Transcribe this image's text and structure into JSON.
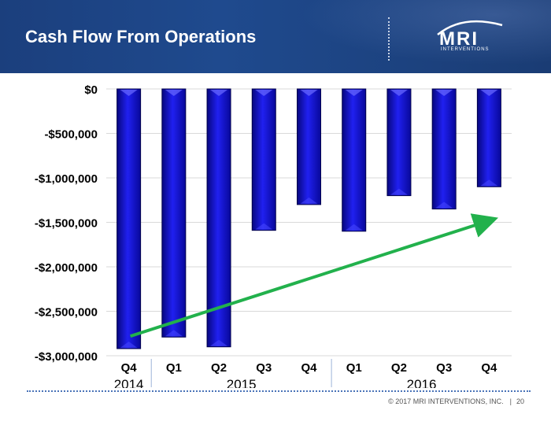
{
  "slide": {
    "title": "Cash Flow From Operations",
    "logo_text": "MRI",
    "logo_sub": "INTERVENTIONS",
    "footer_copyright": "© 2017 MRI INTERVENTIONS, INC.",
    "footer_separator": "|",
    "page_number": "20"
  },
  "colors": {
    "header": "#1f4a8e",
    "bar": "#1212e0",
    "trend": "#22b14c"
  },
  "chart_data": {
    "type": "bar",
    "title": "Cash Flow From Operations",
    "categories": [
      "Q4",
      "Q1",
      "Q2",
      "Q3",
      "Q4",
      "Q1",
      "Q2",
      "Q3",
      "Q4"
    ],
    "values": [
      -2920000,
      -2790000,
      -2900000,
      -1590000,
      -1300000,
      -1600000,
      -1200000,
      -1350000,
      -1100000
    ],
    "year_groups": [
      {
        "label": "2014",
        "start": 0,
        "end": 0
      },
      {
        "label": "2015",
        "start": 1,
        "end": 4
      },
      {
        "label": "2016",
        "start": 5,
        "end": 8
      }
    ],
    "ylim": [
      -3000000,
      0
    ],
    "yticks": [
      0,
      -500000,
      -1000000,
      -1500000,
      -2000000,
      -2500000,
      -3000000
    ],
    "ytick_labels": [
      "$0",
      "-$500,000",
      "-$1,000,000",
      "-$1,500,000",
      "-$2,000,000",
      "-$2,500,000",
      "-$3,000,000"
    ],
    "grid": true,
    "trend_arrow": {
      "from": {
        "category_index": 0,
        "value": -2780000
      },
      "to": {
        "category_index": 8,
        "value": -1470000
      }
    }
  }
}
